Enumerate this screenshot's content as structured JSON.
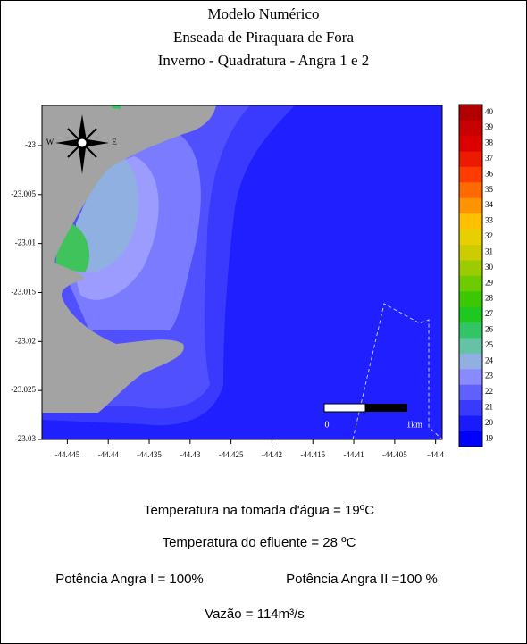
{
  "header": {
    "title": [
      "Modelo Numérico",
      "Enseada de Piraquara de Fora",
      "Inverno - Quadratura - Angra 1 e 2"
    ]
  },
  "map": {
    "xlim": [
      -44.4481,
      -44.3992
    ],
    "ylim": [
      -23.03,
      -22.9959
    ],
    "xticks": [
      -44.445,
      -44.44,
      -44.435,
      -44.43,
      -44.425,
      -44.42,
      -44.415,
      -44.41,
      -44.405,
      -44.4
    ],
    "yticks": [
      -23,
      -23.005,
      -23.01,
      -23.015,
      -23.02,
      -23.025,
      -23.03
    ],
    "compass": [
      "W",
      "E"
    ],
    "scale_bar": [
      "0",
      "1km"
    ]
  },
  "colorbar": {
    "ticks": [
      19,
      20,
      21,
      22,
      23,
      24,
      25,
      26,
      27,
      28,
      29,
      30,
      31,
      32,
      33,
      34,
      35,
      36,
      37,
      38,
      39,
      40
    ],
    "colors": [
      "#0000ff",
      "#1a1aff",
      "#3a3aff",
      "#6060ff",
      "#8a8aff",
      "#8fb0e0",
      "#66c2a5",
      "#33c466",
      "#1ec81e",
      "#3cc800",
      "#6ccc00",
      "#9ccc00",
      "#cccc00",
      "#e8d000",
      "#ffc000",
      "#ff9400",
      "#ff6a00",
      "#ff3c00",
      "#ee1a00",
      "#dd0000",
      "#c80000",
      "#b00000"
    ]
  },
  "footer": {
    "lines": [
      "Temperatura na tomada d'água = 19ºC",
      "Temperatura do efluente = 28 ºC",
      "Vazão = 114m³/s"
    ],
    "power": [
      "Potência Angra I = 100%",
      "Potência Angra II =100 %"
    ]
  }
}
